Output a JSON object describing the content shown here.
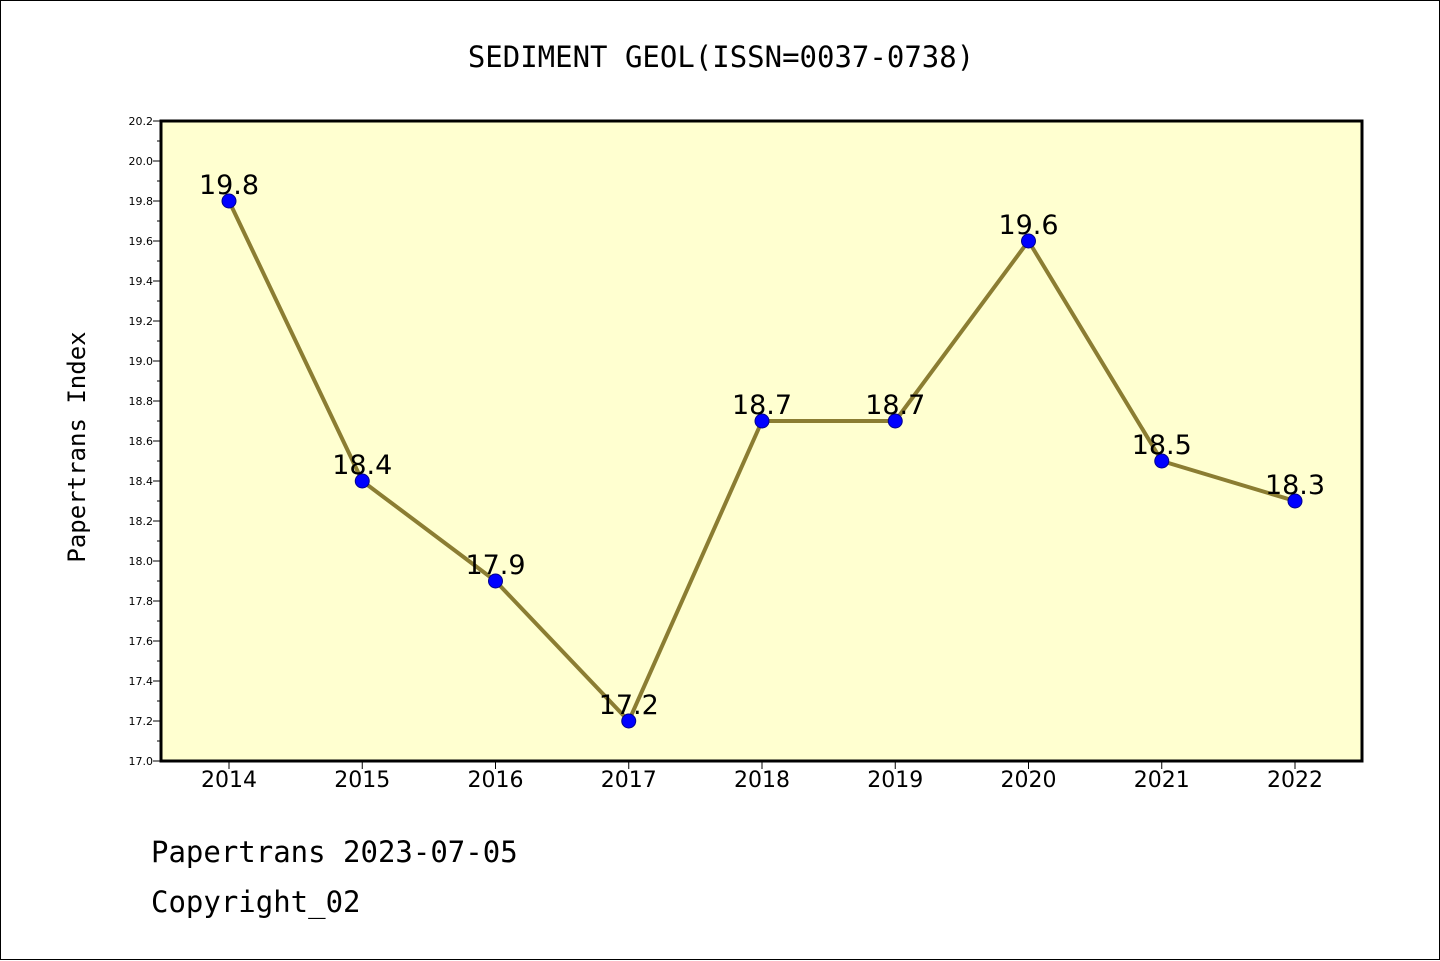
{
  "chart_data": {
    "type": "line",
    "title": "SEDIMENT GEOL(ISSN=0037-0738)",
    "xlabel": "",
    "ylabel": "Papertrans Index",
    "categories": [
      "2014",
      "2015",
      "2016",
      "2017",
      "2018",
      "2019",
      "2020",
      "2021",
      "2022"
    ],
    "series": [
      {
        "values": [
          19.8,
          18.4,
          17.9,
          17.2,
          18.7,
          18.7,
          19.6,
          18.5,
          18.3
        ],
        "data_labels": [
          "19.8",
          "18.4",
          "17.9",
          "17.2",
          "18.7",
          "18.7",
          "19.6",
          "18.5",
          "18.3"
        ],
        "line_color": "#8b7d32",
        "marker_color": "#0000ff"
      }
    ],
    "ylim": [
      17.0,
      20.2
    ],
    "yticks": [
      "17.0",
      "17.2",
      "17.4",
      "17.6",
      "17.8",
      "18.0",
      "18.2",
      "18.4",
      "18.6",
      "18.8",
      "19.0",
      "19.2",
      "19.4",
      "19.6",
      "19.8",
      "20.0",
      "20.2"
    ],
    "grid": false,
    "legend": "none",
    "plot_background": "#ffffd0"
  },
  "footer": {
    "line1": "Papertrans 2023-07-05",
    "line2": "Copyright_02"
  }
}
